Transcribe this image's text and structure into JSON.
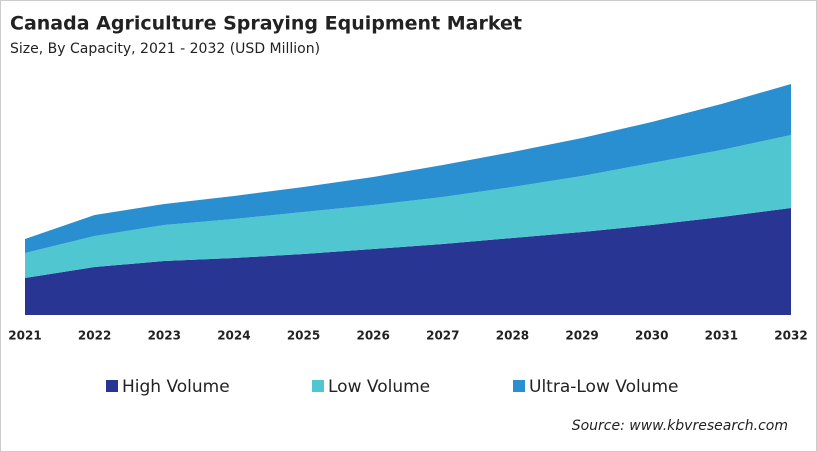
{
  "chart_data": {
    "type": "stacked-area",
    "title": "Canada Agriculture Spraying Equipment Market",
    "subtitle": "Size, By Capacity, 2021 - 2032 (USD Million)",
    "source": "Source: www.kbvresearch.com",
    "categories": [
      "2021",
      "2022",
      "2023",
      "2024",
      "2025",
      "2026",
      "2027",
      "2028",
      "2029",
      "2030",
      "2031",
      "2032"
    ],
    "series": [
      {
        "name": "High Volume",
        "color": "#283593",
        "values": [
          37,
          48,
          54,
          57,
          61,
          66,
          71,
          77,
          83,
          90,
          98,
          107
        ]
      },
      {
        "name": "Low Volume",
        "color": "#4fc6d0",
        "values": [
          25,
          31,
          36,
          39,
          42,
          44,
          47,
          51,
          56,
          62,
          67,
          73
        ]
      },
      {
        "name": "Ultra-Low Volume",
        "color": "#2a8fd0",
        "values": [
          14,
          21,
          21,
          23,
          25,
          28,
          32,
          35,
          38,
          41,
          46,
          51
        ]
      }
    ]
  }
}
